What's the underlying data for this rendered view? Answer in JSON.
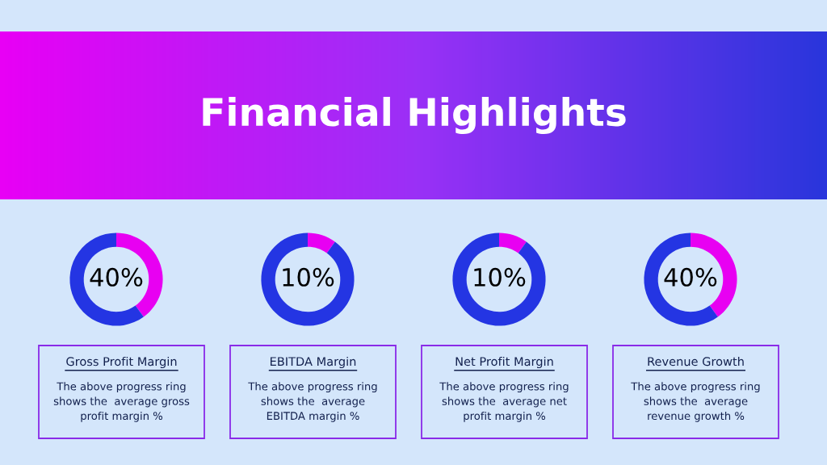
{
  "chart_data": [
    {
      "type": "other",
      "title": "Financial Highlights"
    },
    {
      "type": "donut",
      "title": "Gross Profit Margin",
      "categories": [
        null,
        null
      ],
      "values": [
        40,
        60
      ],
      "colors": [
        "#e800f2",
        "#2435e3"
      ],
      "value_labels": [
        "40%",
        null
      ],
      "annotations": [
        "The above progress ring\nshows the  average gross\nprofit margin %"
      ]
    },
    {
      "type": "donut",
      "title": "EBITDA Margin",
      "categories": [
        null,
        null
      ],
      "values": [
        10,
        90
      ],
      "colors": [
        "#e800f2",
        "#2435e3"
      ],
      "value_labels": [
        "10%",
        null
      ],
      "annotations": [
        "The above progress ring\nshows the  average\nEBITDA margin %"
      ]
    },
    {
      "type": "donut",
      "title": "Net Profit Margin",
      "categories": [
        null,
        null
      ],
      "values": [
        10,
        90
      ],
      "colors": [
        "#e800f2",
        "#2435e3"
      ],
      "value_labels": [
        "10%",
        null
      ],
      "annotations": [
        "The above progress ring\nshows the  average net\nprofit margin %"
      ]
    },
    {
      "type": "donut",
      "title": "Revenue Growth",
      "categories": [
        null,
        null
      ],
      "values": [
        40,
        60
      ],
      "colors": [
        "#e800f2",
        "#2435e3"
      ],
      "value_labels": [
        "40%",
        null
      ],
      "annotations": [
        "The above progress ring\nshows the  average\nrevenue growth %"
      ]
    }
  ]
}
